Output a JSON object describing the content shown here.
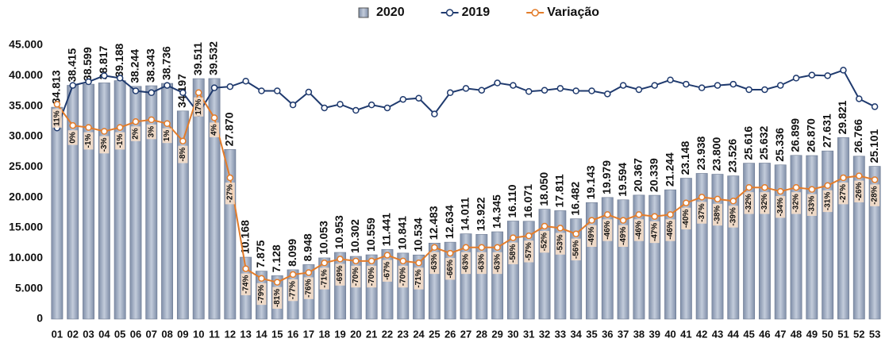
{
  "chart_data": {
    "type": "bar_line",
    "categories": [
      "01",
      "02",
      "03",
      "04",
      "05",
      "06",
      "07",
      "08",
      "09",
      "10",
      "11",
      "12",
      "13",
      "14",
      "15",
      "16",
      "17",
      "18",
      "19",
      "20",
      "21",
      "22",
      "23",
      "24",
      "25",
      "26",
      "27",
      "28",
      "29",
      "30",
      "31",
      "32",
      "33",
      "34",
      "35",
      "36",
      "37",
      "38",
      "39",
      "40",
      "41",
      "42",
      "43",
      "44",
      "45",
      "46",
      "47",
      "48",
      "49",
      "50",
      "51",
      "52",
      "53"
    ],
    "series": [
      {
        "name": "2020",
        "type": "bar",
        "color": "#a3b0c6",
        "values": [
          34813,
          38415,
          38599,
          38817,
          39188,
          38244,
          38343,
          38736,
          34197,
          39511,
          39532,
          27870,
          10168,
          7875,
          7128,
          8099,
          8948,
          10053,
          10953,
          10302,
          10559,
          11441,
          10841,
          10534,
          12483,
          12634,
          14011,
          13922,
          14345,
          16110,
          16071,
          18050,
          17811,
          16482,
          19143,
          19979,
          19594,
          20367,
          20339,
          21244,
          23148,
          23938,
          23800,
          23526,
          25616,
          25632,
          25336,
          26899,
          26870,
          27631,
          29821,
          26766,
          25101
        ],
        "value_labels": [
          "34.813",
          "38.415",
          "38.599",
          "38.817",
          "39.188",
          "38.244",
          "38.343",
          "38.736",
          "34.197",
          "39.511",
          "39.532",
          "27.870",
          "10.168",
          "7.875",
          "7.128",
          "8.099",
          "8.948",
          "10.053",
          "10.953",
          "10.302",
          "10.559",
          "11.441",
          "10.841",
          "10.534",
          "12.483",
          "12.634",
          "14.011",
          "13.922",
          "14.345",
          "16.110",
          "16.071",
          "18.050",
          "17.811",
          "16.482",
          "19.143",
          "19.979",
          "19.594",
          "20.367",
          "20.339",
          "21.244",
          "23.148",
          "23.938",
          "23.800",
          "23.526",
          "25.616",
          "25.632",
          "25.336",
          "26.899",
          "26.870",
          "27.631",
          "29.821",
          "26.766",
          "25.101"
        ]
      },
      {
        "name": "2019",
        "type": "line",
        "color": "#1f3a6e",
        "values": [
          31400,
          38400,
          39000,
          40000,
          39600,
          37500,
          37200,
          38400,
          37200,
          33800,
          38000,
          38200,
          39100,
          37500,
          37500,
          35200,
          37300,
          34700,
          35300,
          34300,
          35200,
          34700,
          36100,
          36300,
          33700,
          37200,
          37900,
          37600,
          38800,
          38400,
          37400,
          37600,
          37900,
          37500,
          37500,
          37000,
          38400,
          37700,
          38400,
          39300,
          38600,
          38000,
          38400,
          38600,
          37700,
          37700,
          38400,
          39600,
          40100,
          40000,
          40900,
          36200,
          34900
        ]
      },
      {
        "name": "Variação",
        "type": "line",
        "axis": "y2",
        "color": "#e37c2a",
        "values": [
          11,
          0,
          -1,
          -3,
          -1,
          2,
          3,
          1,
          -8,
          17,
          4,
          -27,
          -74,
          -79,
          -81,
          -77,
          -76,
          -71,
          -69,
          -70,
          -70,
          -67,
          -70,
          -71,
          -63,
          -66,
          -63,
          -63,
          -63,
          -58,
          -57,
          -52,
          -53,
          -56,
          -49,
          -46,
          -49,
          -46,
          -47,
          -46,
          -40,
          -37,
          -38,
          -39,
          -32,
          -32,
          -34,
          -32,
          -33,
          -31,
          -27,
          -26,
          -28
        ],
        "value_labels": [
          "11%",
          "0%",
          "-1%",
          "-3%",
          "-1%",
          "2%",
          "3%",
          "1%",
          "-8%",
          "17%",
          "4%",
          "-27%",
          "-74%",
          "-79%",
          "-81%",
          "-77%",
          "-76%",
          "-71%",
          "-69%",
          "-70%",
          "-70%",
          "-67%",
          "-70%",
          "-71%",
          "-63%",
          "-66%",
          "-63%",
          "-63%",
          "-63%",
          "-58%",
          "-57%",
          "-52%",
          "-53%",
          "-56%",
          "-49%",
          "-46%",
          "-49%",
          "-46%",
          "-47%",
          "-46%",
          "-40%",
          "-37%",
          "-38%",
          "-39%",
          "-32%",
          "-32%",
          "-34%",
          "-32%",
          "-33%",
          "-31%",
          "-27%",
          "-26%",
          "-28%"
        ]
      }
    ],
    "ylim": [
      0,
      45000
    ],
    "yticks": [
      0,
      {
        "value": 5000,
        "label": "5.000"
      },
      {
        "value": 10000,
        "label": "10.000"
      },
      {
        "value": 15000,
        "label": "15.000"
      },
      {
        "value": 20000,
        "label": "20.000"
      },
      {
        "value": 25000,
        "label": "25.000"
      },
      {
        "value": 30000,
        "label": "30.000"
      },
      {
        "value": 35000,
        "label": "35.000"
      },
      {
        "value": 40000,
        "label": "40.000"
      },
      {
        "value": 45000,
        "label": "45.000"
      }
    ],
    "y2lim": [
      -100,
      41.5
    ],
    "legend": "top"
  }
}
